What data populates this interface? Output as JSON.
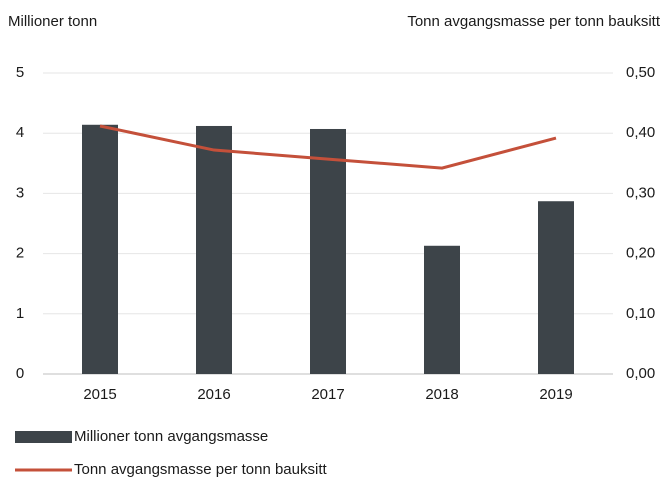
{
  "chart_data": {
    "type": "bar_line",
    "y_label": "Millioner tonn",
    "y2_label": "Tonn avgangsmasse per tonn bauksitt",
    "categories": [
      "2015",
      "2016",
      "2017",
      "2018",
      "2019"
    ],
    "series": [
      {
        "name": "Millioner tonn avgangsmasse",
        "type": "bar",
        "color": "#3d4449",
        "values": [
          4.14,
          4.12,
          4.07,
          2.13,
          2.87
        ]
      },
      {
        "name": "Tonn avgangsmasse per tonn bauksitt",
        "type": "line",
        "axis": "y2",
        "color": "#c4503a",
        "values": [
          0.412,
          0.372,
          0.357,
          0.342,
          0.392
        ]
      }
    ],
    "ylim": [
      0,
      5
    ],
    "yticks": [
      0,
      1,
      2,
      3,
      4,
      5
    ],
    "y2lim": [
      0,
      0.5
    ],
    "y2ticks": [
      {
        "value": 0,
        "label": "0,00"
      },
      {
        "value": 0.1,
        "label": "0,10"
      },
      {
        "value": 0.2,
        "label": "0,20"
      },
      {
        "value": 0.3,
        "label": "0,30"
      },
      {
        "value": 0.4,
        "label": "0,40"
      },
      {
        "value": 0.5,
        "label": "0,50"
      }
    ],
    "grid": true
  }
}
